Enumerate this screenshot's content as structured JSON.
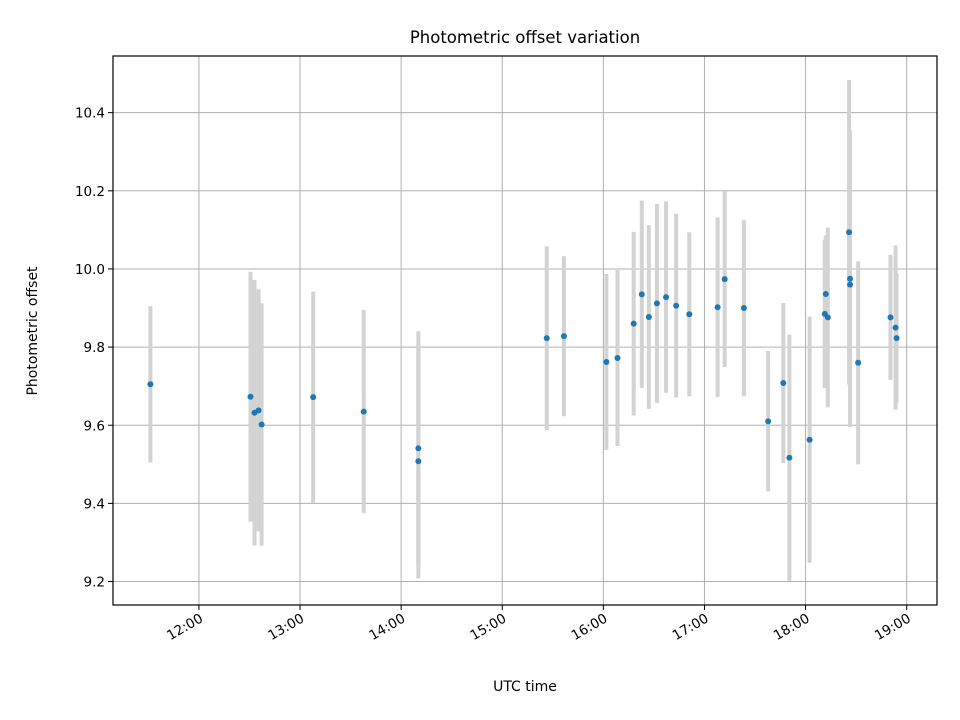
{
  "chart_data": {
    "type": "scatter",
    "title": "Photometric offset variation",
    "xlabel": "UTC time",
    "ylabel": "Photometric offset",
    "x_unit": "hours (UTC)",
    "xlim": [
      11.15,
      19.3
    ],
    "ylim": [
      9.14,
      10.545
    ],
    "grid": true,
    "marker_color": "#1f77b4",
    "errorbar_color": "#d3d3d3",
    "x_ticks": [
      {
        "value": 12,
        "label": "12:00"
      },
      {
        "value": 13,
        "label": "13:00"
      },
      {
        "value": 14,
        "label": "14:00"
      },
      {
        "value": 15,
        "label": "15:00"
      },
      {
        "value": 16,
        "label": "16:00"
      },
      {
        "value": 17,
        "label": "17:00"
      },
      {
        "value": 18,
        "label": "18:00"
      },
      {
        "value": 19,
        "label": "19:00"
      }
    ],
    "y_ticks": [
      {
        "value": 9.2,
        "label": "9.2"
      },
      {
        "value": 9.4,
        "label": "9.4"
      },
      {
        "value": 9.6,
        "label": "9.6"
      },
      {
        "value": 9.8,
        "label": "9.8"
      },
      {
        "value": 10.0,
        "label": "10.0"
      },
      {
        "value": 10.2,
        "label": "10.2"
      },
      {
        "value": 10.4,
        "label": "10.4"
      }
    ],
    "points": [
      {
        "x": 11.52,
        "y": 9.705,
        "err": 0.2
      },
      {
        "x": 12.51,
        "y": 9.673,
        "err": 0.32
      },
      {
        "x": 12.55,
        "y": 9.632,
        "err": 0.34
      },
      {
        "x": 12.59,
        "y": 9.638,
        "err": 0.31
      },
      {
        "x": 12.62,
        "y": 9.602,
        "err": 0.31
      },
      {
        "x": 13.13,
        "y": 9.672,
        "err": 0.27
      },
      {
        "x": 13.63,
        "y": 9.635,
        "err": 0.26
      },
      {
        "x": 14.17,
        "y": 9.541,
        "err": 0.3
      },
      {
        "x": 14.17,
        "y": 9.508,
        "err": 0.3
      },
      {
        "x": 15.44,
        "y": 9.823,
        "err": 0.235
      },
      {
        "x": 15.61,
        "y": 9.828,
        "err": 0.205
      },
      {
        "x": 16.03,
        "y": 9.762,
        "err": 0.225
      },
      {
        "x": 16.14,
        "y": 9.772,
        "err": 0.225
      },
      {
        "x": 16.3,
        "y": 9.86,
        "err": 0.235
      },
      {
        "x": 16.38,
        "y": 9.935,
        "err": 0.24
      },
      {
        "x": 16.45,
        "y": 9.877,
        "err": 0.235
      },
      {
        "x": 16.53,
        "y": 9.912,
        "err": 0.255
      },
      {
        "x": 16.62,
        "y": 9.928,
        "err": 0.245
      },
      {
        "x": 16.72,
        "y": 9.906,
        "err": 0.235
      },
      {
        "x": 16.85,
        "y": 9.884,
        "err": 0.21
      },
      {
        "x": 17.13,
        "y": 9.902,
        "err": 0.23
      },
      {
        "x": 17.2,
        "y": 9.974,
        "err": 0.225
      },
      {
        "x": 17.39,
        "y": 9.9,
        "err": 0.225
      },
      {
        "x": 17.63,
        "y": 9.61,
        "err": 0.18
      },
      {
        "x": 17.78,
        "y": 9.708,
        "err": 0.205
      },
      {
        "x": 17.84,
        "y": 9.517,
        "err": 0.315
      },
      {
        "x": 18.04,
        "y": 9.563,
        "err": 0.315
      },
      {
        "x": 18.19,
        "y": 9.885,
        "err": 0.19
      },
      {
        "x": 18.2,
        "y": 9.936,
        "err": 0.15
      },
      {
        "x": 18.22,
        "y": 9.876,
        "err": 0.23
      },
      {
        "x": 18.43,
        "y": 10.094,
        "err": 0.39
      },
      {
        "x": 18.44,
        "y": 9.975,
        "err": 0.38
      },
      {
        "x": 18.44,
        "y": 9.96,
        "err": 0.36
      },
      {
        "x": 18.52,
        "y": 9.76,
        "err": 0.26
      },
      {
        "x": 18.84,
        "y": 9.876,
        "err": 0.16
      },
      {
        "x": 18.89,
        "y": 9.85,
        "err": 0.21
      },
      {
        "x": 18.9,
        "y": 9.823,
        "err": 0.165
      }
    ]
  }
}
